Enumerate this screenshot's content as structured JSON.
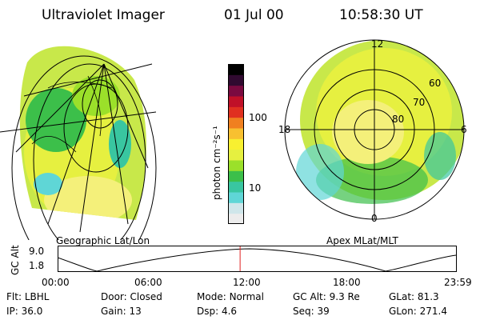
{
  "header": {
    "instrument": "Ultraviolet Imager",
    "date": "01 Jul 00",
    "time": "10:58:30 UT"
  },
  "colorbar": {
    "unit_label": "photon cm⁻²s⁻¹",
    "ticks": [
      "100",
      "10"
    ],
    "scale": "log",
    "colors": [
      "#ececec",
      "#cfe6ea",
      "#5fd6d6",
      "#39c6a0",
      "#3cbf4a",
      "#9be02a",
      "#e6f040",
      "#f8f030",
      "#f8c030",
      "#f08020",
      "#e03020",
      "#c01028",
      "#7a0a40",
      "#300a30",
      "#000000"
    ]
  },
  "maps": {
    "left_label": "Geographic Lat/Lon",
    "right_label": "Apex MLat/MLT",
    "mlt_labels": {
      "top": "12",
      "left": "18",
      "right": "6",
      "bottom": "0"
    },
    "lat_labels": [
      "60",
      "70",
      "80"
    ]
  },
  "timeline": {
    "ylabel": "GC Alt",
    "yticks": [
      "9.0",
      "1.8"
    ],
    "xticks": [
      "00:00",
      "06:00",
      "12:00",
      "18:00",
      "23:59"
    ],
    "current_time_fraction": 0.457
  },
  "status": {
    "row1": [
      {
        "label": "Flt:",
        "value": "LBHL"
      },
      {
        "label": "Door:",
        "value": "Closed"
      },
      {
        "label": "Mode:",
        "value": "Normal"
      },
      {
        "label": "GC Alt:",
        "value": "9.3 Re"
      },
      {
        "label": "GLat:",
        "value": "81.3"
      }
    ],
    "row2": [
      {
        "label": "IP:",
        "value": "36.0"
      },
      {
        "label": "Gain:",
        "value": "13"
      },
      {
        "label": "Dsp:",
        "value": "4.6"
      },
      {
        "label": "Seq:",
        "value": "39"
      },
      {
        "label": "GLon:",
        "value": "271.4"
      }
    ]
  }
}
